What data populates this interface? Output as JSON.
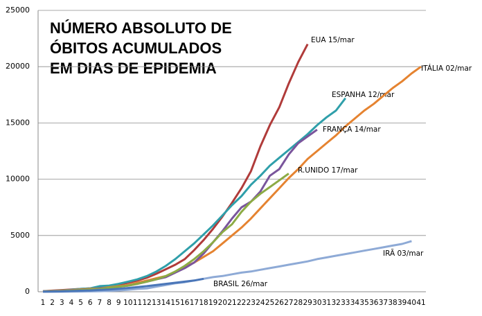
{
  "chart_data": {
    "type": "line",
    "title": [
      "NÚMERO ABSOLUTO DE",
      "ÓBITOS ACUMULADOS",
      "EM DIAS DE EPIDEMIA"
    ],
    "categories": [
      "1",
      "2",
      "3",
      "4",
      "5",
      "6",
      "7",
      "8",
      "9",
      "10",
      "11",
      "12",
      "13",
      "14",
      "15",
      "16",
      "17",
      "18",
      "19",
      "20",
      "21",
      "22",
      "23",
      "24",
      "25",
      "26",
      "27",
      "28",
      "29",
      "30",
      "31",
      "32",
      "33",
      "34",
      "35",
      "36",
      "37",
      "38",
      "39",
      "40",
      "41"
    ],
    "ylim": [
      0,
      25000
    ],
    "yticks": [
      0,
      5000,
      10000,
      15000,
      20000,
      25000
    ],
    "grid": true,
    "series": [
      {
        "name": "EUA 15/mar",
        "color": "#b03b3a",
        "values": [
          50,
          100,
          150,
          200,
          250,
          300,
          400,
          500,
          650,
          800,
          1000,
          1250,
          1600,
          2000,
          2400,
          2900,
          3700,
          4600,
          5600,
          6700,
          7900,
          9200,
          10700,
          12900,
          14800,
          16400,
          18500,
          20400,
          22000,
          null,
          null,
          null,
          null,
          null,
          null,
          null,
          null,
          null,
          null,
          null,
          null
        ]
      },
      {
        "name": "ESPANHA 12/mar",
        "color": "#2f9faa",
        "values": [
          40,
          80,
          120,
          180,
          250,
          300,
          500,
          550,
          700,
          900,
          1100,
          1400,
          1800,
          2300,
          2900,
          3600,
          4300,
          5100,
          5900,
          6800,
          7700,
          8500,
          9500,
          10300,
          11200,
          11900,
          12600,
          13300,
          14000,
          14800,
          15500,
          16100,
          17200,
          null,
          null,
          null,
          null,
          null,
          null,
          null,
          null
        ]
      },
      {
        "name": "ITÁLIA 02/mar",
        "color": "#e58330",
        "values": [
          30,
          60,
          100,
          150,
          200,
          250,
          300,
          400,
          500,
          600,
          800,
          1000,
          1200,
          1400,
          1800,
          2200,
          2600,
          3100,
          3600,
          4300,
          5000,
          5700,
          6500,
          7400,
          8300,
          9200,
          10100,
          10900,
          11800,
          12500,
          13200,
          13900,
          14700,
          15400,
          16100,
          16700,
          17400,
          18100,
          18700,
          19400,
          20000
        ]
      },
      {
        "name": "FRANÇA 14/mar",
        "color": "#7a559c",
        "values": [
          20,
          40,
          80,
          120,
          150,
          200,
          300,
          350,
          450,
          550,
          700,
          900,
          1100,
          1300,
          1700,
          2100,
          2600,
          3400,
          4400,
          5400,
          6500,
          7500,
          8000,
          8900,
          10300,
          10900,
          12200,
          13200,
          13800,
          14400,
          null,
          null,
          null,
          null,
          null,
          null,
          null,
          null,
          null,
          null,
          null
        ]
      },
      {
        "name": "R.UNIDO 17/mar",
        "color": "#8cab45",
        "values": [
          10,
          30,
          60,
          100,
          150,
          200,
          250,
          350,
          450,
          550,
          700,
          900,
          1100,
          1400,
          1800,
          2300,
          2900,
          3600,
          4400,
          5300,
          6000,
          7100,
          8000,
          8700,
          9300,
          9900,
          10500,
          null,
          null,
          null,
          null,
          null,
          null,
          null,
          null,
          null,
          null,
          null,
          null,
          null,
          null
        ]
      },
      {
        "name": "IRÃ 03/mar",
        "color": "#8eaad6",
        "values": [
          2,
          4,
          8,
          15,
          20,
          30,
          50,
          80,
          120,
          180,
          250,
          300,
          450,
          600,
          750,
          850,
          1000,
          1150,
          1300,
          1400,
          1550,
          1700,
          1800,
          1950,
          2100,
          2250,
          2400,
          2550,
          2700,
          2900,
          3050,
          3200,
          3350,
          3500,
          3650,
          3800,
          3950,
          4100,
          4250,
          4500,
          null
        ]
      },
      {
        "name": "BRASIL 26/mar",
        "color": "#4a76b8",
        "values": [
          5,
          15,
          30,
          60,
          90,
          120,
          160,
          200,
          260,
          330,
          420,
          500,
          600,
          700,
          800,
          900,
          1000,
          1150,
          null,
          null,
          null,
          null,
          null,
          null,
          null,
          null,
          null,
          null,
          null,
          null,
          null,
          null,
          null,
          null,
          null,
          null,
          null,
          null,
          null,
          null,
          null
        ]
      }
    ]
  }
}
